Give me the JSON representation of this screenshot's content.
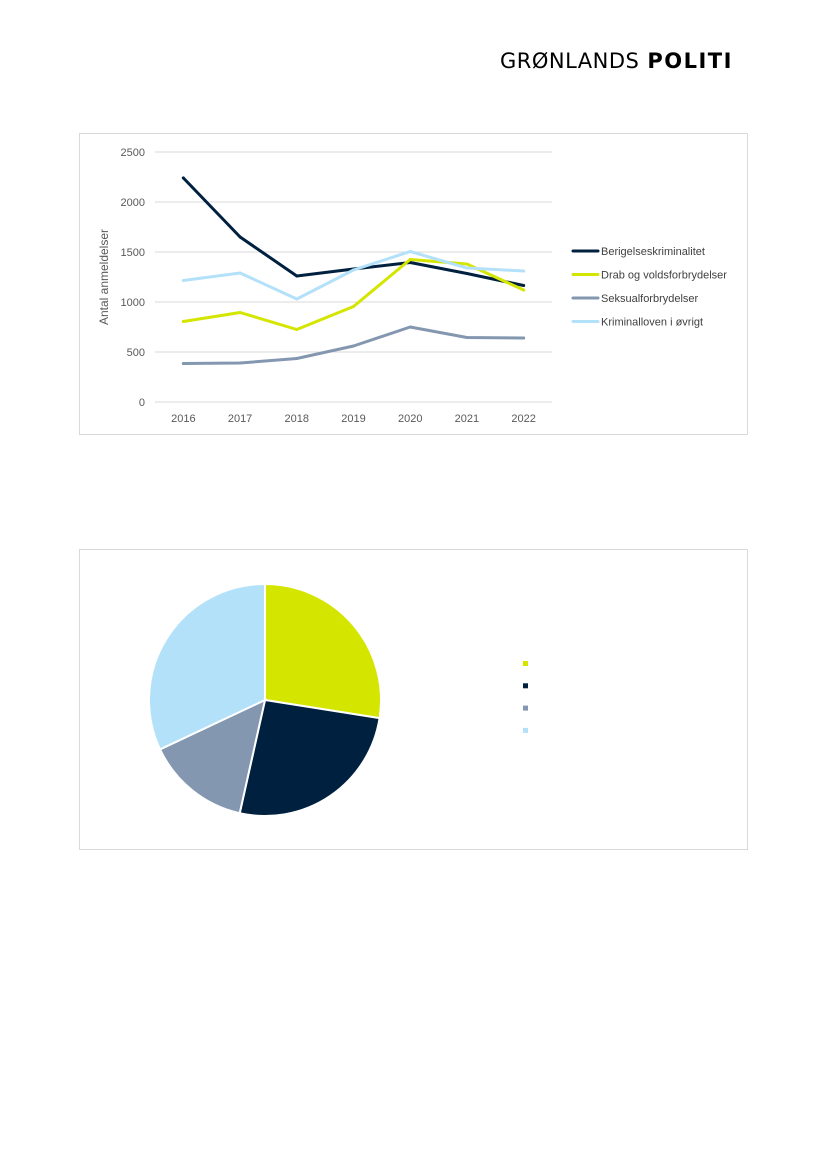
{
  "header": {
    "logo_text_thin": "GRØNLANDS",
    "logo_text_bold": "POLITI"
  },
  "chart_data": [
    {
      "type": "line",
      "title": "",
      "xlabel": "",
      "ylabel": "Antal anmeldelser",
      "x": [
        "2016",
        "2017",
        "2018",
        "2019",
        "2020",
        "2021",
        "2022"
      ],
      "ylim": [
        0,
        2500
      ],
      "yticks": [
        0,
        500,
        1000,
        1500,
        2000,
        2500
      ],
      "grid": true,
      "legend_position": "right",
      "series": [
        {
          "name": "Berigelseskriminalitet",
          "color": "#00203f",
          "values": [
            2240,
            1650,
            1260,
            1330,
            1395,
            1285,
            1165
          ]
        },
        {
          "name": "Drab og voldsforbrydelser",
          "color": "#d4e600",
          "values": [
            805,
            895,
            725,
            955,
            1425,
            1380,
            1120
          ]
        },
        {
          "name": "Seksualforbrydelser",
          "color": "#8497b0",
          "values": [
            385,
            390,
            435,
            560,
            750,
            645,
            640
          ]
        },
        {
          "name": "Kriminalloven i øvrigt",
          "color": "#b4e1fa",
          "values": [
            1215,
            1290,
            1030,
            1320,
            1505,
            1340,
            1310
          ]
        }
      ]
    },
    {
      "type": "pie",
      "title": "",
      "legend_position": "right",
      "slices": [
        {
          "name": "",
          "value": 27.5,
          "color": "#d4e600"
        },
        {
          "name": "",
          "value": 26.0,
          "color": "#00203f"
        },
        {
          "name": "",
          "value": 14.5,
          "color": "#8497b0"
        },
        {
          "name": "",
          "value": 32.0,
          "color": "#b4e1fa"
        }
      ]
    }
  ]
}
